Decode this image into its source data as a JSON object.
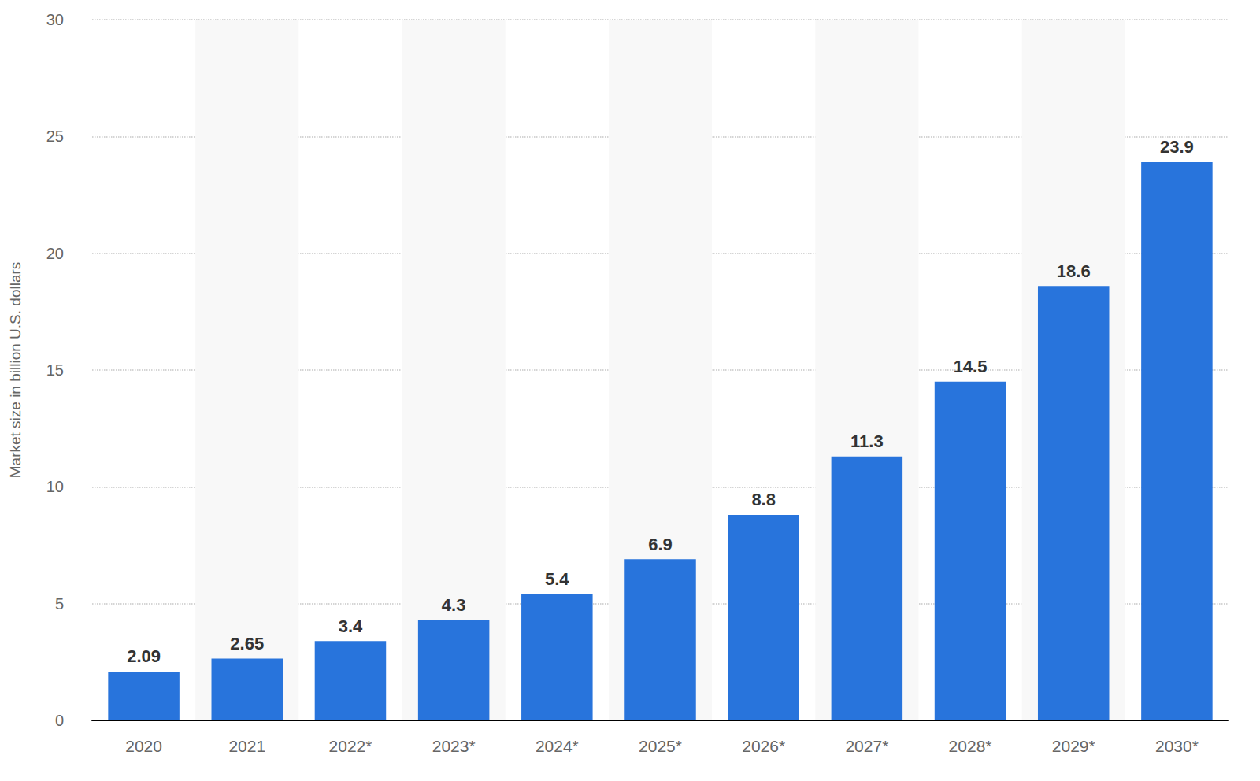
{
  "chart_data": {
    "type": "bar",
    "y_label": "Market size in billion U.S. dollars",
    "categories": [
      "2020",
      "2021",
      "2022*",
      "2023*",
      "2024*",
      "2025*",
      "2026*",
      "2027*",
      "2028*",
      "2029*",
      "2030*"
    ],
    "values": [
      2.09,
      2.65,
      3.4,
      4.3,
      5.4,
      6.9,
      8.8,
      11.3,
      14.5,
      18.6,
      23.9
    ],
    "color": "#2874dc",
    "ylim": [
      0,
      30
    ],
    "yticks": [
      0,
      5,
      10,
      15,
      20,
      25,
      30
    ],
    "grid": true,
    "data_labels": true
  }
}
